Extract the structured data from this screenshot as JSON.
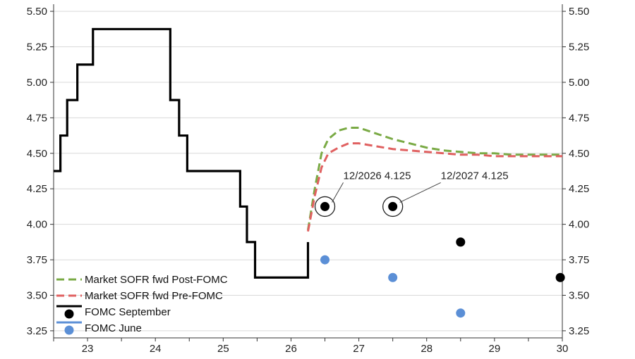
{
  "chart_data": {
    "type": "line",
    "ylim": [
      3.2,
      5.55
    ],
    "xlim": [
      22.5,
      30.0
    ],
    "y_ticks": [
      "5.50",
      "5.25",
      "5.00",
      "4.75",
      "4.50",
      "4.25",
      "4.00",
      "3.75",
      "3.50",
      "3.25"
    ],
    "y_tick_values": [
      5.5,
      5.25,
      5.0,
      4.75,
      4.5,
      4.25,
      4.0,
      3.75,
      3.5,
      3.25
    ],
    "x_ticks": [
      "23",
      "24",
      "25",
      "26",
      "27",
      "28",
      "29",
      "30"
    ],
    "x_tick_values": [
      23,
      24,
      25,
      26,
      27,
      28,
      29,
      30
    ],
    "grid": "horizontal",
    "legend_position": "bottom-left",
    "series": [
      {
        "name": "Market SOFR fwd Post-FOMC",
        "style": "dashed",
        "color": "#7aaa45",
        "x": [
          26.25,
          26.35,
          26.45,
          26.55,
          26.7,
          26.85,
          27.0,
          27.25,
          27.5,
          27.75,
          28.0,
          28.25,
          28.5,
          28.75,
          29.0,
          29.25,
          29.5,
          29.75,
          30.0
        ],
        "y": [
          3.96,
          4.25,
          4.5,
          4.6,
          4.66,
          4.68,
          4.68,
          4.64,
          4.6,
          4.57,
          4.54,
          4.52,
          4.51,
          4.5,
          4.5,
          4.49,
          4.49,
          4.49,
          4.49
        ]
      },
      {
        "name": "Market SOFR fwd Pre-FOMC",
        "style": "dashed",
        "color": "#e06060",
        "x": [
          26.25,
          26.35,
          26.45,
          26.55,
          26.7,
          26.85,
          27.0,
          27.25,
          27.5,
          27.75,
          28.0,
          28.25,
          28.5,
          28.75,
          29.0,
          29.25,
          29.5,
          29.75,
          30.0
        ],
        "y": [
          3.95,
          4.2,
          4.4,
          4.5,
          4.54,
          4.57,
          4.57,
          4.55,
          4.53,
          4.52,
          4.51,
          4.5,
          4.49,
          4.49,
          4.48,
          4.48,
          4.48,
          4.48,
          4.48
        ]
      },
      {
        "name": "FOMC September",
        "type": "step",
        "color": "#000000",
        "x": [
          22.5,
          22.6,
          22.6,
          22.7,
          22.7,
          22.85,
          22.85,
          23.08,
          23.08,
          24.22,
          24.22,
          24.35,
          24.35,
          24.47,
          24.47,
          25.25,
          25.25,
          25.35,
          25.35,
          25.47,
          25.47,
          26.25,
          26.25
        ],
        "y": [
          4.375,
          4.375,
          4.625,
          4.625,
          4.875,
          4.875,
          5.125,
          5.125,
          5.375,
          5.375,
          4.875,
          4.875,
          4.625,
          4.625,
          4.375,
          4.375,
          4.125,
          4.125,
          3.875,
          3.875,
          3.625,
          3.625,
          3.875
        ],
        "dots": {
          "x": [
            26.5,
            27.5,
            28.5,
            29.97
          ],
          "y": [
            4.125,
            4.125,
            3.875,
            3.625
          ]
        }
      },
      {
        "name": "FOMC June",
        "color": "#5b8fd6",
        "dots": {
          "x": [
            26.5,
            27.5,
            28.5
          ],
          "y": [
            3.75,
            3.625,
            3.375
          ]
        }
      }
    ],
    "annotations": [
      {
        "text": "12/2026 4.125",
        "x": 26.5,
        "y": 4.125
      },
      {
        "text": "12/2027 4.125",
        "x": 27.5,
        "y": 4.125
      }
    ]
  }
}
